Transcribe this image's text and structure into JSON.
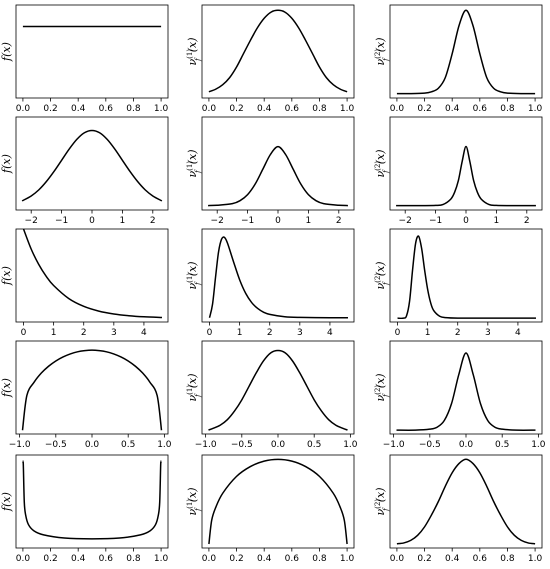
{
  "chart_data": [
    {
      "type": "line",
      "ylabel": "f(x)",
      "ylabel_base": "f",
      "ylabel_sup": "",
      "ylabel_sub": "",
      "ylabel_arg": "(x)",
      "xlim": [
        -0.05,
        1.05
      ],
      "xticks": [
        0,
        0.2,
        0.4,
        0.6,
        0.8,
        1.0
      ],
      "xtick_labels": [
        "0.0",
        "0.2",
        "0.4",
        "0.6",
        "0.8",
        "1.0"
      ],
      "ylim": [
        0,
        1.3
      ],
      "x": [
        0,
        0.1,
        0.2,
        0.3,
        0.4,
        0.5,
        0.6,
        0.7,
        0.8,
        0.9,
        1.0
      ],
      "y": [
        1,
        1,
        1,
        1,
        1,
        1,
        1,
        1,
        1,
        1,
        1
      ]
    },
    {
      "type": "line",
      "ylabel": "ν_f^(1)(x)",
      "ylabel_base": "ν",
      "ylabel_sup": "(1)",
      "ylabel_sub": "f",
      "ylabel_arg": "(x)",
      "xlim": [
        -0.05,
        1.05
      ],
      "xticks": [
        0,
        0.2,
        0.4,
        0.6,
        0.8,
        1.0
      ],
      "xtick_labels": [
        "0.0",
        "0.2",
        "0.4",
        "0.6",
        "0.8",
        "1.0"
      ],
      "ylim": [
        -0.05,
        1.0
      ],
      "x": [
        0,
        0.05,
        0.1,
        0.15,
        0.2,
        0.25,
        0.3,
        0.35,
        0.4,
        0.45,
        0.5,
        0.55,
        0.6,
        0.65,
        0.7,
        0.75,
        0.8,
        0.85,
        0.9,
        0.95,
        1.0
      ],
      "y": [
        0.02,
        0.05,
        0.1,
        0.18,
        0.3,
        0.45,
        0.6,
        0.74,
        0.85,
        0.92,
        0.94,
        0.92,
        0.85,
        0.74,
        0.6,
        0.45,
        0.3,
        0.18,
        0.1,
        0.05,
        0.02
      ]
    },
    {
      "type": "line",
      "ylabel": "ν_f^(2)(x)",
      "ylabel_base": "ν",
      "ylabel_sup": "(2)",
      "ylabel_sub": "f",
      "ylabel_arg": "(x)",
      "xlim": [
        -0.05,
        1.05
      ],
      "xticks": [
        0,
        0.2,
        0.4,
        0.6,
        0.8,
        1.0
      ],
      "xtick_labels": [
        "0.0",
        "0.2",
        "0.4",
        "0.6",
        "0.8",
        "1.0"
      ],
      "ylim": [
        -0.05,
        1.0
      ],
      "x": [
        0,
        0.1,
        0.2,
        0.25,
        0.3,
        0.35,
        0.4,
        0.45,
        0.5,
        0.55,
        0.6,
        0.65,
        0.7,
        0.75,
        0.8,
        0.9,
        1.0
      ],
      "y": [
        0.0,
        0.0,
        0.005,
        0.02,
        0.06,
        0.18,
        0.45,
        0.77,
        0.94,
        0.77,
        0.45,
        0.18,
        0.06,
        0.02,
        0.005,
        0.0,
        0.0
      ]
    },
    {
      "type": "line",
      "ylabel": "f(x)",
      "ylabel_base": "f",
      "ylabel_sup": "",
      "ylabel_sub": "",
      "ylabel_arg": "(x)",
      "xlim": [
        -2.5,
        2.5
      ],
      "xticks": [
        -2,
        -1,
        0,
        1,
        2
      ],
      "xtick_labels": [
        "−2",
        "−1",
        "0",
        "1",
        "2"
      ],
      "ylim": [
        -0.02,
        0.47
      ],
      "x": [
        -2.3,
        -2.0,
        -1.75,
        -1.5,
        -1.25,
        -1.0,
        -0.75,
        -0.5,
        -0.25,
        0,
        0.25,
        0.5,
        0.75,
        1.0,
        1.25,
        1.5,
        1.75,
        2.0,
        2.3
      ],
      "y": [
        0.028,
        0.054,
        0.086,
        0.13,
        0.183,
        0.242,
        0.301,
        0.352,
        0.387,
        0.399,
        0.387,
        0.352,
        0.301,
        0.242,
        0.183,
        0.13,
        0.086,
        0.054,
        0.028
      ]
    },
    {
      "type": "line",
      "ylabel": "ν_f^(1)(x)",
      "ylabel_base": "ν",
      "ylabel_sup": "(1)",
      "ylabel_sub": "f",
      "ylabel_arg": "(x)",
      "xlim": [
        -2.5,
        2.5
      ],
      "xticks": [
        -2,
        -1,
        0,
        1,
        2
      ],
      "xtick_labels": [
        "−2",
        "−1",
        "0",
        "1",
        "2"
      ],
      "ylim": [
        -0.03,
        0.6
      ],
      "x": [
        -2.3,
        -2.0,
        -1.5,
        -1.25,
        -1.0,
        -0.75,
        -0.5,
        -0.25,
        0,
        0.25,
        0.5,
        0.75,
        1.0,
        1.25,
        1.5,
        2.0,
        2.3
      ],
      "y": [
        0.0,
        0.002,
        0.013,
        0.033,
        0.074,
        0.146,
        0.246,
        0.346,
        0.399,
        0.346,
        0.246,
        0.146,
        0.074,
        0.033,
        0.013,
        0.002,
        0.0
      ]
    },
    {
      "type": "line",
      "ylabel": "ν_f^(2)(x)",
      "ylabel_base": "ν",
      "ylabel_sup": "(2)",
      "ylabel_sub": "f",
      "ylabel_arg": "(x)",
      "xlim": [
        -2.5,
        2.5
      ],
      "xticks": [
        -2,
        -1,
        0,
        1,
        2
      ],
      "xtick_labels": [
        "−2",
        "−1",
        "0",
        "1",
        "2"
      ],
      "ylim": [
        -0.03,
        0.6
      ],
      "x": [
        -2.3,
        -1.5,
        -1.0,
        -0.75,
        -0.5,
        -0.375,
        -0.25,
        -0.125,
        0,
        0.125,
        0.25,
        0.375,
        0.5,
        0.75,
        1.0,
        1.5,
        2.3
      ],
      "y": [
        0.0,
        0.0,
        0.001,
        0.008,
        0.044,
        0.09,
        0.17,
        0.3,
        0.4,
        0.3,
        0.17,
        0.09,
        0.044,
        0.008,
        0.001,
        0.0,
        0.0
      ]
    },
    {
      "type": "line",
      "ylabel": "f(x)",
      "ylabel_base": "f",
      "ylabel_sup": "",
      "ylabel_sub": "",
      "ylabel_arg": "(x)",
      "xlim": [
        -0.25,
        4.8
      ],
      "xticks": [
        0,
        1,
        2,
        3,
        4
      ],
      "xtick_labels": [
        "0",
        "1",
        "2",
        "3",
        "4"
      ],
      "ylim": [
        -0.04,
        1.0
      ],
      "x": [
        0,
        0.25,
        0.5,
        0.75,
        1.0,
        1.5,
        2.0,
        2.5,
        3.0,
        3.5,
        4.0,
        4.6
      ],
      "y": [
        1.0,
        0.779,
        0.607,
        0.472,
        0.368,
        0.223,
        0.135,
        0.082,
        0.05,
        0.03,
        0.018,
        0.01
      ]
    },
    {
      "type": "line",
      "ylabel": "ν_f^(1)(x)",
      "ylabel_base": "ν",
      "ylabel_sup": "(1)",
      "ylabel_sub": "f",
      "ylabel_arg": "(x)",
      "xlim": [
        -0.25,
        4.8
      ],
      "xticks": [
        0,
        1,
        2,
        3,
        4
      ],
      "xtick_labels": [
        "0",
        "1",
        "2",
        "3",
        "4"
      ],
      "ylim": [
        -0.05,
        1.05
      ],
      "x": [
        0,
        0.1,
        0.2,
        0.3,
        0.4,
        0.5,
        0.6,
        0.8,
        1.0,
        1.2,
        1.4,
        1.6,
        1.8,
        2.0,
        2.5,
        3.0,
        4.0,
        4.6
      ],
      "y": [
        0.0,
        0.16,
        0.48,
        0.78,
        0.93,
        0.95,
        0.88,
        0.66,
        0.45,
        0.29,
        0.18,
        0.11,
        0.065,
        0.04,
        0.012,
        0.004,
        0.0,
        0.0
      ]
    },
    {
      "type": "line",
      "ylabel": "ν_f^(2)(x)",
      "ylabel_base": "ν",
      "ylabel_sup": "(2)",
      "ylabel_sub": "f",
      "ylabel_arg": "(x)",
      "xlim": [
        -0.25,
        4.8
      ],
      "xticks": [
        0,
        1,
        2,
        3,
        4
      ],
      "xtick_labels": [
        "0",
        "1",
        "2",
        "3",
        "4"
      ],
      "ylim": [
        -0.08,
        1.85
      ],
      "x": [
        0,
        0.2,
        0.3,
        0.4,
        0.5,
        0.6,
        0.7,
        0.8,
        0.9,
        1.0,
        1.1,
        1.2,
        1.4,
        1.6,
        2.0,
        3.0,
        4.6
      ],
      "y": [
        0.0,
        0.0,
        0.05,
        0.35,
        1.0,
        1.55,
        1.7,
        1.45,
        1.0,
        0.6,
        0.32,
        0.16,
        0.04,
        0.01,
        0.0,
        0.0,
        0.0
      ]
    },
    {
      "type": "line",
      "ylabel": "f(x)",
      "ylabel_base": "f",
      "ylabel_sup": "",
      "ylabel_sub": "",
      "ylabel_arg": "(x)",
      "xlim": [
        -1.05,
        1.05
      ],
      "xticks": [
        -1.0,
        -0.5,
        0.0,
        0.5,
        1.0
      ],
      "xtick_labels": [
        "−1.0",
        "−0.5",
        "0.0",
        "0.5",
        "1.0"
      ],
      "ylim": [
        -0.03,
        0.71
      ],
      "x": [
        -0.96,
        -0.9,
        -0.8,
        -0.7,
        -0.6,
        -0.5,
        -0.4,
        -0.3,
        -0.2,
        -0.1,
        0,
        0.1,
        0.2,
        0.3,
        0.4,
        0.5,
        0.6,
        0.7,
        0.8,
        0.9,
        0.96
      ],
      "y": [
        0.0,
        0.277,
        0.382,
        0.455,
        0.509,
        0.551,
        0.583,
        0.607,
        0.624,
        0.633,
        0.637,
        0.633,
        0.624,
        0.607,
        0.583,
        0.551,
        0.509,
        0.455,
        0.382,
        0.277,
        0.0
      ]
    },
    {
      "type": "line",
      "ylabel": "ν_f^(1)(x)",
      "ylabel_base": "ν",
      "ylabel_sup": "(1)",
      "ylabel_sub": "f",
      "ylabel_arg": "(x)",
      "xlim": [
        -1.05,
        1.05
      ],
      "xticks": [
        -1.0,
        -0.5,
        0.0,
        0.5,
        1.0
      ],
      "xtick_labels": [
        "−1.0",
        "−0.5",
        "0.0",
        "0.5",
        "1.0"
      ],
      "ylim": [
        -0.05,
        1.12
      ],
      "x": [
        -0.96,
        -0.9,
        -0.8,
        -0.7,
        -0.6,
        -0.5,
        -0.4,
        -0.3,
        -0.2,
        -0.1,
        0,
        0.1,
        0.2,
        0.3,
        0.4,
        0.5,
        0.6,
        0.7,
        0.8,
        0.9,
        0.96
      ],
      "y": [
        0.0,
        0.02,
        0.06,
        0.13,
        0.24,
        0.38,
        0.55,
        0.72,
        0.87,
        0.97,
        1.0,
        0.97,
        0.87,
        0.72,
        0.55,
        0.38,
        0.24,
        0.13,
        0.06,
        0.02,
        0.0
      ]
    },
    {
      "type": "line",
      "ylabel": "ν_f^(2)(x)",
      "ylabel_base": "ν",
      "ylabel_sup": "(2)",
      "ylabel_sub": "f",
      "ylabel_arg": "(x)",
      "xlim": [
        -1.05,
        1.05
      ],
      "xticks": [
        -1.0,
        -0.5,
        0.0,
        0.5,
        1.0
      ],
      "xtick_labels": [
        "−1.0",
        "−0.5",
        "0.0",
        "0.5",
        "1.0"
      ],
      "ylim": [
        -0.08,
        1.85
      ],
      "x": [
        -0.96,
        -0.7,
        -0.5,
        -0.4,
        -0.3,
        -0.2,
        -0.1,
        0,
        0.1,
        0.2,
        0.3,
        0.4,
        0.5,
        0.7,
        0.96
      ],
      "y": [
        0.0,
        0.0,
        0.02,
        0.06,
        0.2,
        0.55,
        1.15,
        1.6,
        1.15,
        0.55,
        0.2,
        0.06,
        0.02,
        0.0,
        0.0
      ]
    },
    {
      "type": "line",
      "ylabel": "f(x)",
      "ylabel_base": "f",
      "ylabel_sup": "",
      "ylabel_sub": "",
      "ylabel_arg": "(x)",
      "xlim": [
        -0.05,
        1.05
      ],
      "xticks": [
        0,
        0.2,
        0.4,
        0.6,
        0.8,
        1.0
      ],
      "xtick_labels": [
        "0.0",
        "0.2",
        "0.4",
        "0.6",
        "0.8",
        "1.0"
      ],
      "ylim": [
        0,
        6.5
      ],
      "x": [
        0.0,
        0.003,
        0.01,
        0.02,
        0.04,
        0.08,
        0.15,
        0.3,
        0.5,
        0.7,
        0.85,
        0.92,
        0.96,
        0.98,
        0.99,
        0.997,
        1.0
      ],
      "y": [
        6.0,
        5.8,
        3.2,
        2.3,
        1.64,
        1.2,
        0.92,
        0.7,
        0.64,
        0.7,
        0.92,
        1.2,
        1.64,
        2.3,
        3.2,
        5.8,
        6.0
      ]
    },
    {
      "type": "line",
      "ylabel": "ν_f^(1)(x)",
      "ylabel_base": "ν",
      "ylabel_sup": "(1)",
      "ylabel_sub": "f",
      "ylabel_arg": "(x)",
      "xlim": [
        -0.05,
        1.05
      ],
      "xticks": [
        0,
        0.2,
        0.4,
        0.6,
        0.8,
        1.0
      ],
      "xtick_labels": [
        "0.0",
        "0.2",
        "0.4",
        "0.6",
        "0.8",
        "1.0"
      ],
      "ylim": [
        -0.03,
        0.67
      ],
      "x": [
        0.0,
        0.02,
        0.05,
        0.1,
        0.2,
        0.3,
        0.4,
        0.5,
        0.6,
        0.7,
        0.8,
        0.9,
        0.95,
        0.98,
        1.0
      ],
      "y": [
        0.0,
        0.178,
        0.277,
        0.382,
        0.509,
        0.583,
        0.624,
        0.637,
        0.624,
        0.583,
        0.509,
        0.382,
        0.277,
        0.178,
        0.0
      ]
    },
    {
      "type": "line",
      "ylabel": "ν_f^(2)(x)",
      "ylabel_base": "ν",
      "ylabel_sup": "(2)",
      "ylabel_sub": "f",
      "ylabel_arg": "(x)",
      "xlim": [
        -0.05,
        1.05
      ],
      "xticks": [
        0,
        0.2,
        0.4,
        0.6,
        0.8,
        1.0
      ],
      "xtick_labels": [
        "0.0",
        "0.2",
        "0.4",
        "0.6",
        "0.8",
        "1.0"
      ],
      "ylim": [
        -0.05,
        1.05
      ],
      "x": [
        0.0,
        0.05,
        0.1,
        0.15,
        0.2,
        0.25,
        0.3,
        0.35,
        0.4,
        0.45,
        0.5,
        0.55,
        0.6,
        0.65,
        0.7,
        0.75,
        0.8,
        0.85,
        0.9,
        0.95,
        1.0
      ],
      "y": [
        0.0,
        0.01,
        0.04,
        0.1,
        0.2,
        0.34,
        0.5,
        0.68,
        0.84,
        0.95,
        1.0,
        0.95,
        0.84,
        0.68,
        0.5,
        0.34,
        0.2,
        0.1,
        0.04,
        0.01,
        0.0
      ]
    }
  ]
}
